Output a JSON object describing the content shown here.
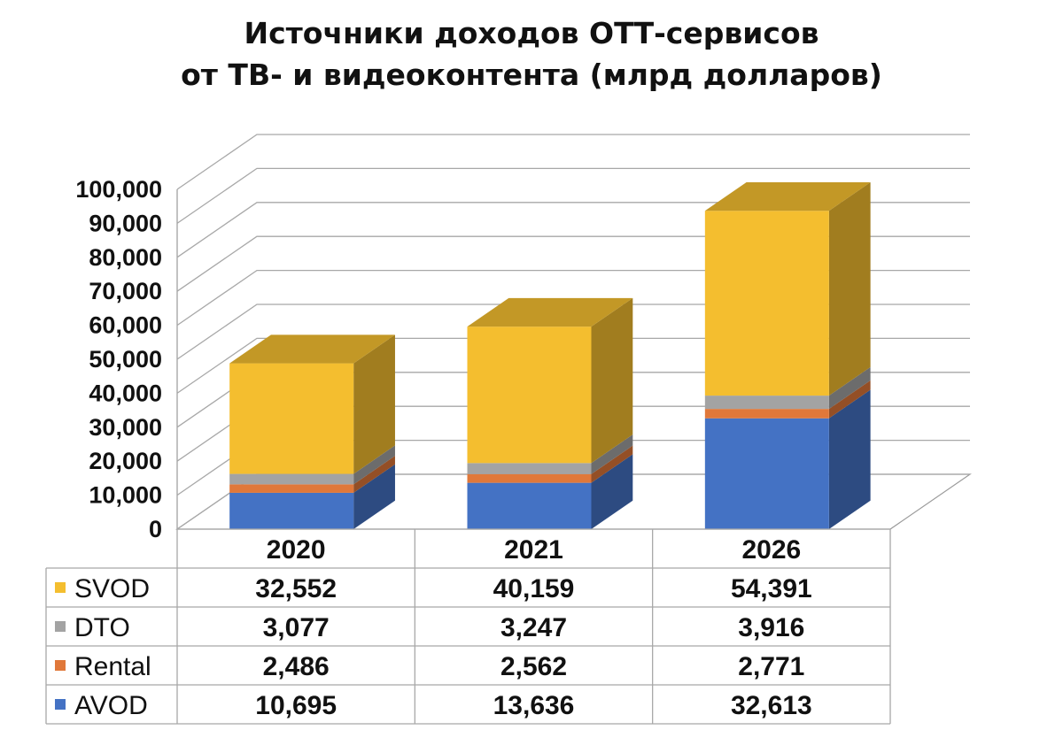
{
  "chart_data": {
    "type": "bar",
    "stacked": true,
    "three_d": true,
    "title_lines": [
      "Источники доходов ОТТ-сервисов",
      "от ТВ- и видеоконтента (млрд долларов)"
    ],
    "categories": [
      "2020",
      "2021",
      "2026"
    ],
    "series": [
      {
        "name": "SVOD",
        "values": [
          "32,552",
          "40,159",
          "54,391"
        ],
        "color": "#f4be2f"
      },
      {
        "name": "DTO",
        "values": [
          "3,077",
          "3,247",
          "3,916"
        ],
        "color": "#a3a3a3"
      },
      {
        "name": "Rental",
        "values": [
          "2,486",
          "2,562",
          "2,771"
        ],
        "color": "#e0783a"
      },
      {
        "name": "AVOD",
        "values": [
          "10,695",
          "13,636",
          "32,613"
        ],
        "color": "#4472c4"
      }
    ],
    "stack_order_bottom_to_top": [
      "AVOD",
      "Rental",
      "DTO",
      "SVOD"
    ],
    "y_ticks": [
      "0",
      "10,000",
      "20,000",
      "30,000",
      "40,000",
      "50,000",
      "60,000",
      "70,000",
      "80,000",
      "90,000",
      "100,000"
    ],
    "ylim": [
      0,
      100000
    ],
    "grid": true,
    "legend": "data-table-below"
  }
}
